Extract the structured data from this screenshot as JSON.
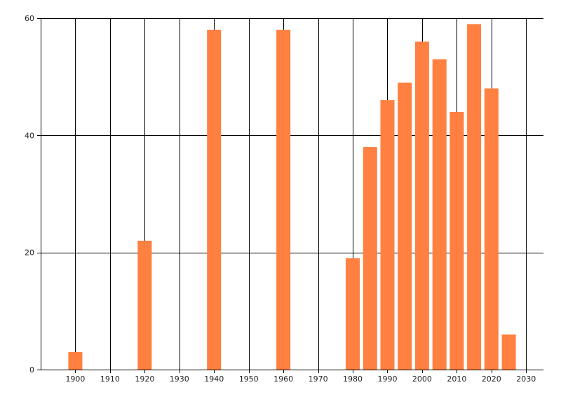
{
  "chart_data": {
    "type": "bar",
    "x": [
      1900,
      1920,
      1940,
      1960,
      1980,
      1985,
      1990,
      1995,
      2000,
      2005,
      2010,
      2015,
      2020,
      2025
    ],
    "values": [
      3,
      22,
      58,
      58,
      19,
      38,
      46,
      49,
      56,
      53,
      44,
      59,
      48,
      6
    ],
    "xlim": [
      1890,
      2035
    ],
    "ylim": [
      0,
      60
    ],
    "xticks": [
      1900,
      1910,
      1920,
      1930,
      1940,
      1950,
      1960,
      1970,
      1980,
      1990,
      2000,
      2010,
      2020,
      2030
    ],
    "yticks": [
      0,
      20,
      40,
      60
    ],
    "title": "",
    "xlabel": "",
    "ylabel": "",
    "grid": true,
    "bar_color": "#ff8040",
    "axis_color": "#000000"
  }
}
